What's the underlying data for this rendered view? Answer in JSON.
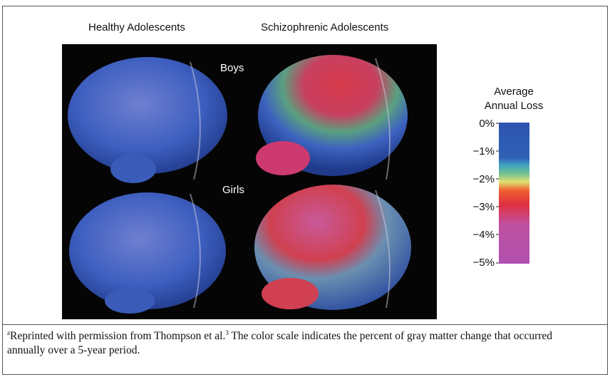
{
  "figure": {
    "column_labels": [
      "Healthy Adolescents",
      "Schizophrenic Adolescents"
    ],
    "row_labels": [
      "Boys",
      "Girls"
    ],
    "scale": {
      "title": [
        "Average",
        "Annual Loss"
      ],
      "tick_labels": [
        "0%",
        "−1%",
        "−2%",
        "−3%",
        "−4%",
        "−5%"
      ]
    }
  },
  "footnote": {
    "marker": "a",
    "text_before_ref": "Reprinted with permission from Thompson et al.",
    "ref": "3",
    "text_after_ref": " The color scale indicates the percent of gray matter change that occurred annually over a 5-year period."
  }
}
